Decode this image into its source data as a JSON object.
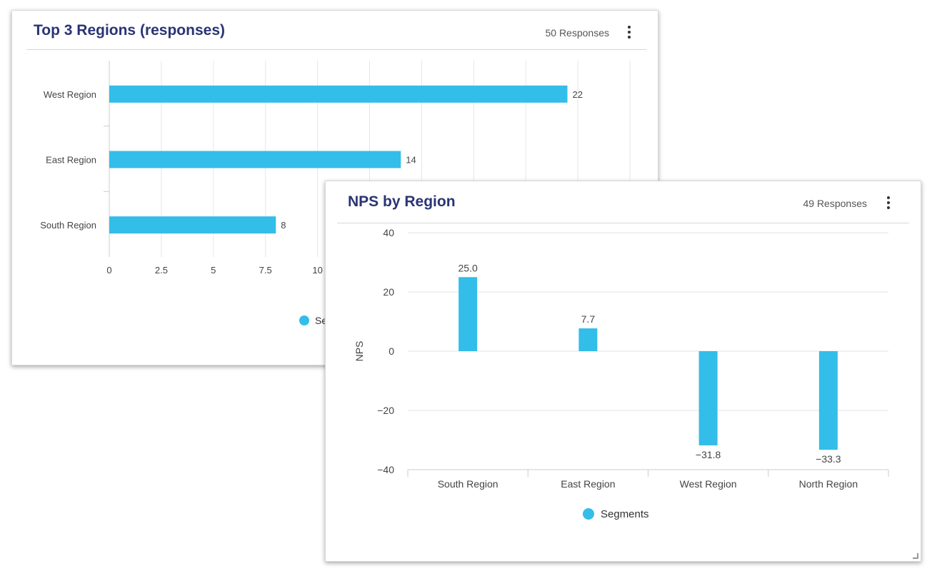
{
  "card1": {
    "title": "Top 3 Regions (responses)",
    "responses": "50 Responses",
    "legend_label": "Segments",
    "menu_icon": "kebab-menu-icon"
  },
  "card2": {
    "title": "NPS by Region",
    "responses": "49 Responses",
    "legend_label": "Segments",
    "menu_icon": "kebab-menu-icon"
  },
  "chart_data": [
    {
      "type": "bar",
      "orientation": "horizontal",
      "title": "Top 3 Regions (responses)",
      "categories": [
        "West Region",
        "East Region",
        "South Region"
      ],
      "series": [
        {
          "name": "Segments",
          "values": [
            22,
            14,
            8
          ],
          "color": "#33bde9"
        }
      ],
      "data_labels": [
        "22",
        "14",
        "8"
      ],
      "xlim": [
        0,
        25
      ],
      "x_ticks": [
        "0",
        "2.5",
        "5",
        "7.5",
        "10"
      ],
      "grid": true,
      "legend": "bottom"
    },
    {
      "type": "bar",
      "orientation": "vertical",
      "title": "NPS by Region",
      "categories": [
        "South Region",
        "East Region",
        "West Region",
        "North Region"
      ],
      "series": [
        {
          "name": "Segments",
          "values": [
            25.0,
            7.7,
            -31.8,
            -33.3
          ],
          "color": "#33bde9"
        }
      ],
      "data_labels": [
        "25.0",
        "7.7",
        "−31.8",
        "−33.3"
      ],
      "ylabel": "NPS",
      "ylim": [
        -40,
        40
      ],
      "y_ticks": [
        "40",
        "20",
        "0",
        "−20",
        "−40"
      ],
      "grid": true,
      "legend": "bottom"
    }
  ]
}
